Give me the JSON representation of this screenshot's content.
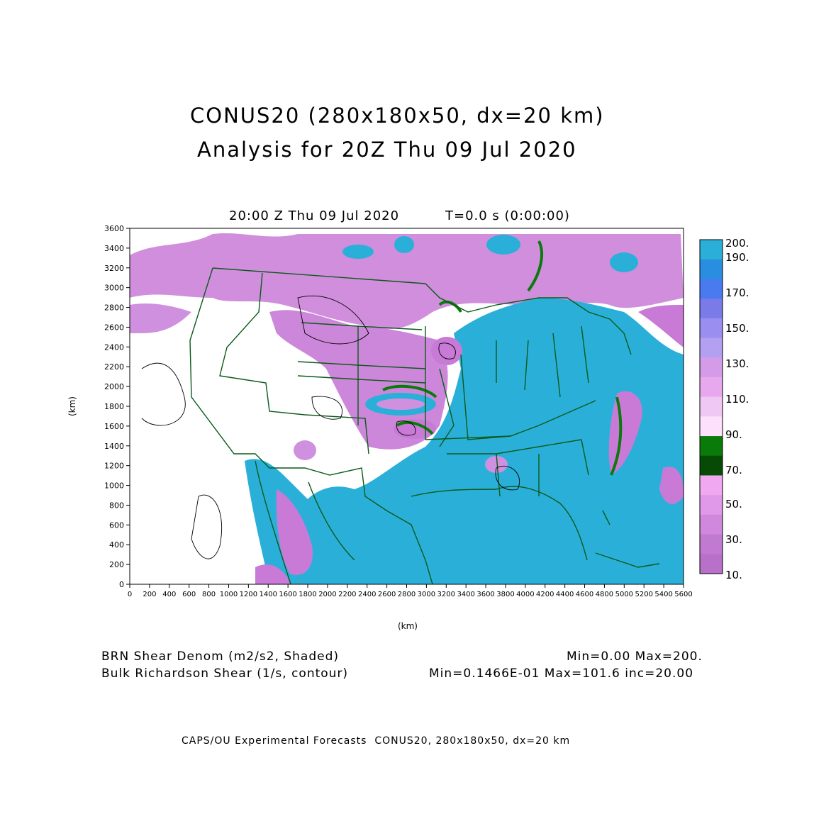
{
  "header": {
    "title_line1": "CONUS20 (280x180x50, dx=20 km)",
    "title_line2": "Analysis for 20Z Thu 09 Jul 2020",
    "valid_time": "20:00 Z Thu 09 Jul 2020",
    "model_time": "T=0.0 s (0:00:00)"
  },
  "axes": {
    "xlabel": "(km)",
    "ylabel": "(km)",
    "xticks": [
      "0",
      "200",
      "400",
      "600",
      "800",
      "1000",
      "1200",
      "1400",
      "1600",
      "1800",
      "2000",
      "2200",
      "2400",
      "2600",
      "2800",
      "3000",
      "3200",
      "3400",
      "3600",
      "3800",
      "4000",
      "4200",
      "4400",
      "4600",
      "4800",
      "5000",
      "5200",
      "5400",
      "5600"
    ],
    "yticks": [
      "0",
      "200",
      "400",
      "600",
      "800",
      "1000",
      "1200",
      "1400",
      "1600",
      "1800",
      "2000",
      "2200",
      "2400",
      "2600",
      "2800",
      "3000",
      "3200",
      "3400",
      "3600"
    ],
    "xlim": [
      0,
      5600
    ],
    "ylim": [
      0,
      3600
    ]
  },
  "colorbar": {
    "labels": [
      "200.",
      "190.",
      "170.",
      "150.",
      "130.",
      "110.",
      "90.",
      "70.",
      "50.",
      "30.",
      "10."
    ],
    "colors": [
      "#2ab0d8",
      "#2a8ee0",
      "#4a7af0",
      "#7a7ae8",
      "#9a8ef0",
      "#b4a0f0",
      "#d49ce8",
      "#e8a8ee",
      "#f0c8f4",
      "#fce0fc",
      "#0a7a0a",
      "#064a06",
      "#f0a8f0",
      "#e098e8",
      "#d088dc",
      "#c07ad0",
      "#b870c8"
    ]
  },
  "fields": {
    "shaded_label": "BRN Shear Denom (m2/s2, Shaded)",
    "shaded_range": "Min=0.00 Max=200.",
    "contour_label": "Bulk Richardson Shear (1/s, contour)",
    "contour_range": "Min=0.1466E-01 Max=101.6 inc=20.00"
  },
  "footer": {
    "text": "CAPS/OU Experimental Forecasts  CONUS20, 280x180x50, dx=20 km"
  },
  "colors": {
    "border": "#0a5a1a",
    "high": "#2ab0d8",
    "mid": "#d090e0",
    "low": "#c87ad6"
  }
}
